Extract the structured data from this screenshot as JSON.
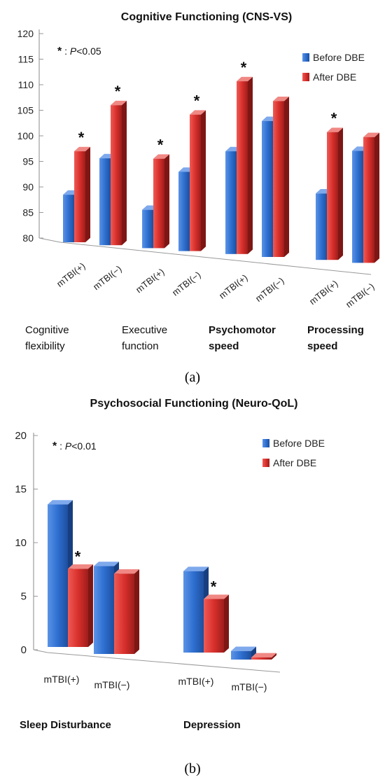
{
  "chart_data": [
    {
      "type": "bar",
      "panel_label": "(a)",
      "title": "Cognitive Functioning (CNS-VS)",
      "annotation": {
        "star": "*",
        "text": ": ",
        "p": "P",
        "threshold": "<0.05"
      },
      "ylim": [
        80,
        120
      ],
      "yticks": [
        80,
        85,
        90,
        95,
        100,
        105,
        110,
        115,
        120
      ],
      "series_labels": [
        "Before DBE",
        "After DBE"
      ],
      "colors": {
        "before": "#2e6fd0",
        "after": "#d9302c"
      },
      "groups": [
        {
          "label_lines": [
            "Cognitive",
            "flexibility"
          ],
          "bold": false,
          "bars": [
            {
              "category": "mTBI(+)",
              "before": 89.3,
              "after": 97.8,
              "star": true
            },
            {
              "category": "mTBI(−)",
              "before": 97.0,
              "after": 107.4,
              "star": true
            }
          ]
        },
        {
          "label_lines": [
            "Executive",
            "function"
          ],
          "bold": false,
          "bars": [
            {
              "category": "mTBI(+)",
              "before": 87.5,
              "after": 97.5,
              "star": true
            },
            {
              "category": "mTBI(−)",
              "before": 95.5,
              "after": 106.7,
              "star": true
            }
          ]
        },
        {
          "label_lines": [
            "Psychomotor",
            "speed"
          ],
          "bold": true,
          "bars": [
            {
              "category": "mTBI(+)",
              "before": 100.1,
              "after": 113.8,
              "star": true
            },
            {
              "category": "mTBI(−)",
              "before": 106.6,
              "after": 110.5,
              "star": false
            }
          ]
        },
        {
          "label_lines": [
            "Processing",
            "speed"
          ],
          "bold": true,
          "bars": [
            {
              "category": "mTBI(+)",
              "before": 93.0,
              "after": 105.0,
              "star": true
            },
            {
              "category": "mTBI(−)",
              "before": 101.9,
              "after": 104.6,
              "star": false
            }
          ]
        }
      ]
    },
    {
      "type": "bar",
      "panel_label": "(b)",
      "title": "Psychosocial Functioning (Neuro-QoL)",
      "annotation": {
        "star": "*",
        "text": ": ",
        "p": "P",
        "threshold": "<0.01"
      },
      "ylim": [
        0,
        20
      ],
      "yticks": [
        0,
        5,
        10,
        15,
        20
      ],
      "series_labels": [
        "Before DBE",
        "After DBE"
      ],
      "colors": {
        "before": "#2e6fd0",
        "after": "#d9302c"
      },
      "groups": [
        {
          "label_lines": [
            "Sleep  Disturbance"
          ],
          "bold": true,
          "bars": [
            {
              "category": "mTBI(+)",
              "before": 13.3,
              "after": 7.3,
              "star": true
            },
            {
              "category": "mTBI(−)",
              "before": 8.2,
              "after": 7.5,
              "star": false
            }
          ]
        },
        {
          "label_lines": [
            "Depression"
          ],
          "bold": true,
          "bars": [
            {
              "category": "mTBI(+)",
              "before": 7.6,
              "after": 5.0,
              "star": true
            },
            {
              "category": "mTBI(−)",
              "before": 0.8,
              "after": 0.2,
              "star": false
            }
          ]
        }
      ]
    }
  ]
}
